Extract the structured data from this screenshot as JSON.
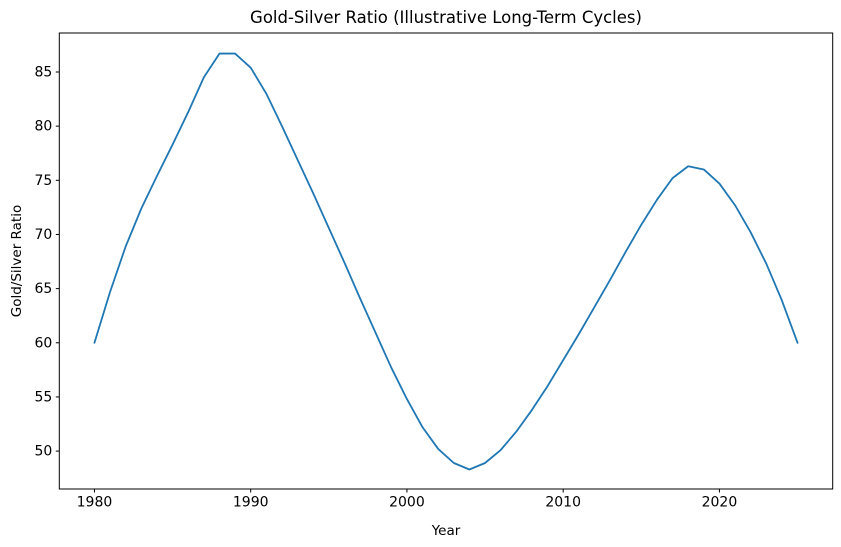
{
  "chart_data": {
    "type": "line",
    "title": "Gold-Silver Ratio (Illustrative Long-Term Cycles)",
    "xlabel": "Year",
    "ylabel": "Gold/Silver Ratio",
    "x": [
      1980,
      1981,
      1982,
      1983,
      1984,
      1985,
      1986,
      1987,
      1988,
      1989,
      1990,
      1991,
      1992,
      1993,
      1994,
      1995,
      1996,
      1997,
      1998,
      1999,
      2000,
      2001,
      2002,
      2003,
      2004,
      2005,
      2006,
      2007,
      2008,
      2009,
      2010,
      2011,
      2012,
      2013,
      2014,
      2015,
      2016,
      2017,
      2018,
      2019,
      2020,
      2021,
      2022,
      2023,
      2024,
      2025
    ],
    "series": [
      {
        "name": "Gold/Silver Ratio",
        "values": [
          60.0,
          64.7,
          68.9,
          72.4,
          75.4,
          78.3,
          81.3,
          84.5,
          86.7,
          86.7,
          85.4,
          83.0,
          80.0,
          76.9,
          73.8,
          70.6,
          67.4,
          64.1,
          60.9,
          57.7,
          54.8,
          52.2,
          50.2,
          48.9,
          48.3,
          48.9,
          50.1,
          51.8,
          53.8,
          56.0,
          58.4,
          60.8,
          63.3,
          65.8,
          68.4,
          70.9,
          73.2,
          75.2,
          76.3,
          76.0,
          74.7,
          72.7,
          70.2,
          67.3,
          63.9,
          60.0
        ]
      }
    ],
    "xticks": [
      1980,
      1990,
      2000,
      2010,
      2020
    ],
    "yticks": [
      50,
      55,
      60,
      65,
      70,
      75,
      80,
      85
    ],
    "xlim": [
      1977.75,
      2027.25
    ],
    "ylim": [
      46.5,
      88.6
    ],
    "grid": false,
    "legend_position": "none",
    "line_color": "#1f77b4",
    "spine_color": "#000000",
    "background_color": "#ffffff"
  }
}
